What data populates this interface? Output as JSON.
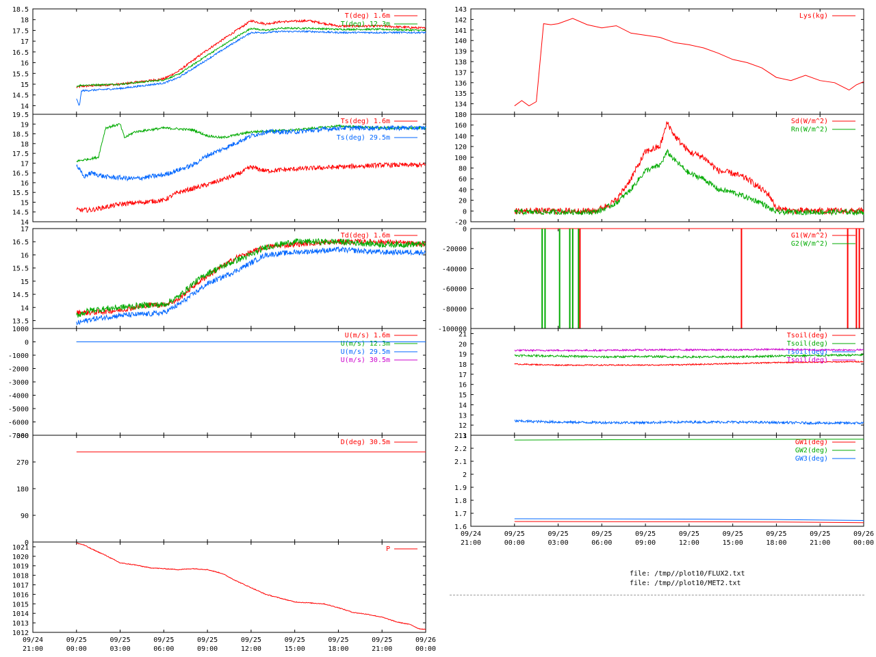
{
  "files": [
    "file: /tmp//plot10/FLUX2.txt",
    "file: /tmp//plot10/MET2.txt"
  ],
  "chart_data": [
    {
      "type": "line",
      "xlim": [
        -3,
        24
      ],
      "ylim": [
        13.6,
        18.5
      ],
      "yticks": [
        "14",
        "14.5",
        "15",
        "15.5",
        "16",
        "16.5",
        "17",
        "17.5",
        "18",
        "18.5"
      ],
      "series": [
        {
          "name": "T(deg)  1.6m",
          "color": "#ff0000",
          "noise": 0.05,
          "x": [
            0,
            0.3,
            3,
            6,
            7,
            9,
            11,
            12,
            13,
            14,
            16,
            18,
            21,
            24
          ],
          "y": [
            14.85,
            14.9,
            15.0,
            15.25,
            15.6,
            16.6,
            17.5,
            17.95,
            17.8,
            17.9,
            17.95,
            17.7,
            17.7,
            17.6
          ]
        },
        {
          "name": "T(deg) 12.3m",
          "color": "#00aa00",
          "noise": 0.04,
          "x": [
            0,
            0.3,
            3,
            6,
            7,
            9,
            11,
            12,
            13,
            14,
            16,
            18,
            21,
            24
          ],
          "y": [
            14.9,
            14.95,
            15.0,
            15.2,
            15.45,
            16.35,
            17.2,
            17.6,
            17.5,
            17.6,
            17.6,
            17.55,
            17.55,
            17.5
          ]
        },
        {
          "name": "",
          "color": "#0066ff",
          "noise": 0.04,
          "x": [
            0,
            0.2,
            0.35,
            0.6,
            3,
            6,
            7,
            9,
            11,
            12,
            13,
            14,
            16,
            18,
            21,
            24
          ],
          "y": [
            14.3,
            14.0,
            14.7,
            14.7,
            14.8,
            15.05,
            15.3,
            16.15,
            17.0,
            17.4,
            17.4,
            17.45,
            17.45,
            17.4,
            17.4,
            17.4
          ]
        }
      ]
    },
    {
      "type": "line",
      "xlim": [
        -3,
        24
      ],
      "ylim": [
        14,
        19.5
      ],
      "yticks": [
        "14",
        "14.5",
        "15",
        "15.5",
        "16",
        "16.5",
        "17",
        "17.5",
        "18",
        "18.5",
        "19",
        "19.5"
      ],
      "series": [
        {
          "name": "Ts(deg)  1.6m",
          "color": "#ff0000",
          "noise": 0.12,
          "x": [
            0,
            1,
            3,
            6,
            7,
            9,
            11,
            12,
            13,
            15,
            18,
            21,
            24
          ],
          "y": [
            14.6,
            14.6,
            14.9,
            15.1,
            15.5,
            15.9,
            16.4,
            16.8,
            16.6,
            16.7,
            16.8,
            16.9,
            16.9
          ]
        },
        {
          "name": "",
          "color": "#00aa00",
          "noise": 0.06,
          "x": [
            0,
            1.5,
            2,
            3,
            3.3,
            4,
            6,
            8,
            9,
            10,
            12,
            15,
            18,
            21,
            24
          ],
          "y": [
            17.1,
            17.3,
            18.8,
            19.0,
            18.3,
            18.6,
            18.8,
            18.7,
            18.4,
            18.3,
            18.6,
            18.7,
            18.9,
            18.8,
            18.8
          ]
        },
        {
          "name": "Ts(deg) 29.5m",
          "color": "#0066ff",
          "noise": 0.12,
          "x": [
            0,
            0.5,
            1,
            2,
            4,
            6,
            8,
            9,
            10,
            12,
            13,
            15,
            18,
            21,
            24
          ],
          "y": [
            16.9,
            16.3,
            16.5,
            16.3,
            16.2,
            16.4,
            16.9,
            17.4,
            17.7,
            18.4,
            18.6,
            18.6,
            18.8,
            18.8,
            18.8
          ]
        }
      ]
    },
    {
      "type": "line",
      "xlim": [
        -3,
        24
      ],
      "ylim": [
        13.2,
        17.0
      ],
      "yticks": [
        "13.5",
        "14",
        "14.5",
        "15",
        "15.5",
        "16",
        "16.5",
        "17"
      ],
      "series": [
        {
          "name": "Td(deg)  1.6m",
          "color": "#ff0000",
          "noise": 0.1,
          "x": [
            0,
            1,
            3,
            5,
            6,
            7,
            8,
            9,
            11,
            12,
            13,
            15,
            18,
            21,
            24
          ],
          "y": [
            13.8,
            13.8,
            13.9,
            14.1,
            14.1,
            14.3,
            14.8,
            15.2,
            15.9,
            16.1,
            16.3,
            16.4,
            16.5,
            16.5,
            16.4
          ]
        },
        {
          "name": "",
          "color": "#00aa00",
          "noise": 0.12,
          "x": [
            0,
            1,
            3,
            5,
            6,
            7,
            8,
            9,
            11,
            12,
            13,
            15,
            18,
            21,
            24
          ],
          "y": [
            13.7,
            13.9,
            14.0,
            14.1,
            14.1,
            14.4,
            14.9,
            15.3,
            15.8,
            16.0,
            16.3,
            16.5,
            16.5,
            16.4,
            16.4
          ]
        },
        {
          "name": "",
          "color": "#0066ff",
          "noise": 0.1,
          "x": [
            0,
            1,
            3,
            5,
            6,
            7,
            8,
            9,
            11,
            12,
            13,
            15,
            18,
            21,
            24
          ],
          "y": [
            13.4,
            13.55,
            13.7,
            13.75,
            13.8,
            14.1,
            14.5,
            14.9,
            15.4,
            15.7,
            16.0,
            16.1,
            16.2,
            16.1,
            16.1
          ]
        }
      ]
    },
    {
      "type": "line",
      "xlim": [
        -3,
        24
      ],
      "ylim": [
        -7000,
        1000
      ],
      "yticks": [
        "-7000",
        "-6000",
        "-5000",
        "-4000",
        "-3000",
        "-2000",
        "-1000",
        "0",
        "1000"
      ],
      "series": [
        {
          "name": "U(m/s)  1.6m",
          "color": "#ff0000",
          "x": [
            0,
            24
          ],
          "y": [
            0,
            0
          ]
        },
        {
          "name": "U(m/s) 12.3m",
          "color": "#00aa00",
          "x": [
            0,
            24
          ],
          "y": [
            0,
            0
          ]
        },
        {
          "name": "U(m/s) 29.5m",
          "color": "#0066ff",
          "x": [
            0,
            24
          ],
          "y": [
            0,
            0
          ]
        },
        {
          "name": "U(m/s) 30.5m",
          "color": "#cc00cc",
          "x": [],
          "y": []
        }
      ]
    },
    {
      "type": "line",
      "xlim": [
        -3,
        24
      ],
      "ylim": [
        0,
        360
      ],
      "yticks": [
        "0",
        "90",
        "180",
        "270",
        "360"
      ],
      "series": [
        {
          "name": "D(deg)  30.5m",
          "color": "#ff0000",
          "x": [
            0,
            24
          ],
          "y": [
            304,
            304
          ]
        }
      ]
    },
    {
      "type": "line",
      "xlim": [
        -3,
        24
      ],
      "ylim": [
        1012,
        1021.5
      ],
      "yticks": [
        "1012",
        "1013",
        "1014",
        "1015",
        "1016",
        "1017",
        "1018",
        "1019",
        "1020",
        "1021"
      ],
      "xticks": [
        {
          "l1": "09/24",
          "l2": "21:00"
        },
        {
          "l1": "09/25",
          "l2": "00:00"
        },
        {
          "l1": "09/25",
          "l2": "03:00"
        },
        {
          "l1": "09/25",
          "l2": "06:00"
        },
        {
          "l1": "09/25",
          "l2": "09:00"
        },
        {
          "l1": "09/25",
          "l2": "12:00"
        },
        {
          "l1": "09/25",
          "l2": "15:00"
        },
        {
          "l1": "09/25",
          "l2": "18:00"
        },
        {
          "l1": "09/25",
          "l2": "21:00"
        },
        {
          "l1": "09/26",
          "l2": "00:00"
        }
      ],
      "series": [
        {
          "name": "P",
          "color": "#ff0000",
          "noise": 0.04,
          "x": [
            0,
            0.5,
            1,
            2,
            3,
            4,
            5,
            6,
            7,
            8,
            9,
            10,
            11,
            12,
            13,
            14,
            15,
            16,
            17,
            18,
            19,
            20,
            21,
            22,
            23,
            23.5,
            24
          ],
          "y": [
            1021.4,
            1021.2,
            1020.8,
            1020.1,
            1019.3,
            1019.1,
            1018.8,
            1018.7,
            1018.6,
            1018.7,
            1018.6,
            1018.2,
            1017.4,
            1016.7,
            1016.0,
            1015.6,
            1015.2,
            1015.1,
            1015.0,
            1014.6,
            1014.1,
            1013.9,
            1013.6,
            1013.1,
            1012.8,
            1012.4,
            1012.3
          ]
        }
      ]
    },
    {
      "type": "line",
      "xlim": [
        -3,
        24
      ],
      "ylim": [
        133,
        143
      ],
      "yticks": [
        "134",
        "135",
        "136",
        "137",
        "138",
        "139",
        "140",
        "141",
        "142",
        "143"
      ],
      "series": [
        {
          "name": "Lys(kg)",
          "color": "#ff0000",
          "x": [
            0,
            0.5,
            1.0,
            1.5,
            2.0,
            2.5,
            3,
            4,
            5,
            6,
            7,
            8,
            9,
            10,
            11,
            12,
            13,
            14,
            15,
            16,
            17,
            18,
            19,
            20,
            21,
            22,
            23,
            23.5,
            24
          ],
          "y": [
            133.8,
            134.3,
            133.8,
            134.2,
            141.6,
            141.5,
            141.6,
            142.1,
            141.5,
            141.2,
            141.4,
            140.7,
            140.5,
            140.3,
            139.8,
            139.6,
            139.3,
            138.8,
            138.2,
            137.9,
            137.4,
            136.5,
            136.2,
            136.7,
            136.2,
            136.0,
            135.3,
            135.8,
            136.1
          ]
        }
      ]
    },
    {
      "type": "line",
      "xlim": [
        -3,
        24
      ],
      "ylim": [
        -20,
        180
      ],
      "yticks": [
        "-20",
        "0",
        "20",
        "40",
        "60",
        "80",
        "100",
        "120",
        "140",
        "160",
        "180"
      ],
      "series": [
        {
          "name": "Sd(W/m^2)",
          "color": "#ff0000",
          "noise": 6,
          "x": [
            0,
            5.5,
            6,
            7,
            8,
            9,
            10,
            10.5,
            11,
            12,
            13,
            14,
            15,
            16,
            17,
            17.5,
            18,
            19,
            20,
            21,
            24
          ],
          "y": [
            0,
            0,
            5,
            20,
            60,
            110,
            120,
            165,
            140,
            110,
            100,
            75,
            70,
            60,
            40,
            30,
            5,
            0,
            0,
            0,
            0
          ]
        },
        {
          "name": "Rn(W/m^2)",
          "color": "#00aa00",
          "noise": 5,
          "x": [
            0,
            5.5,
            6,
            7,
            8,
            9,
            10,
            10.5,
            11,
            12,
            13,
            14,
            15,
            16,
            17,
            17.5,
            18,
            19,
            20,
            21,
            24
          ],
          "y": [
            -2,
            -2,
            2,
            15,
            40,
            75,
            85,
            110,
            95,
            70,
            60,
            40,
            35,
            25,
            15,
            5,
            -2,
            -2,
            -2,
            -2,
            -2
          ]
        }
      ]
    },
    {
      "type": "line",
      "xlim": [
        -3,
        24
      ],
      "ylim": [
        -100000,
        0
      ],
      "yticks": [
        "-100000",
        "-80000",
        "-60000",
        "-40000",
        "-20000",
        "0"
      ],
      "series": [
        {
          "name": "G1(W/m^2)",
          "color": "#ff0000",
          "x": [
            0,
            24
          ],
          "y": [
            0,
            0
          ],
          "spikes": [
            4.5,
            15.6,
            22.9,
            23.5,
            23.7
          ]
        },
        {
          "name": "G2(W/m^2)",
          "color": "#00aa00",
          "x": [],
          "y": [],
          "spikes": [
            1.9,
            2.1,
            3.1,
            3.8,
            4.0,
            4.4
          ]
        }
      ]
    },
    {
      "type": "line",
      "xlim": [
        -3,
        24
      ],
      "ylim": [
        11,
        21.5
      ],
      "yticks": [
        "11",
        "12",
        "13",
        "14",
        "15",
        "16",
        "17",
        "18",
        "19",
        "20",
        "21"
      ],
      "series": [
        {
          "name": "Tsoil(deg)",
          "color": "#ff0000",
          "noise": 0.06,
          "x": [
            0,
            3,
            6,
            9,
            12,
            15,
            18,
            21,
            24
          ],
          "y": [
            18.0,
            17.9,
            17.9,
            17.9,
            17.95,
            18.05,
            18.15,
            18.2,
            18.25
          ]
        },
        {
          "name": "Tsoil(deg)",
          "color": "#00aa00",
          "noise": 0.1,
          "x": [
            0,
            3,
            6,
            9,
            12,
            15,
            18,
            21,
            24
          ],
          "y": [
            18.85,
            18.8,
            18.7,
            18.75,
            18.7,
            18.7,
            18.8,
            18.85,
            18.9
          ]
        },
        {
          "name": "Tsoil(deg)",
          "color": "#0066ff",
          "noise": 0.12,
          "x": [
            0,
            3,
            6,
            9,
            12,
            15,
            18,
            21,
            24
          ],
          "y": [
            12.4,
            12.3,
            12.25,
            12.25,
            12.3,
            12.3,
            12.25,
            12.2,
            12.2
          ]
        },
        {
          "name": "Tsoil(deg)",
          "color": "#cc00cc",
          "noise": 0.08,
          "x": [
            0,
            3,
            6,
            9,
            12,
            15,
            18,
            21,
            24
          ],
          "y": [
            19.35,
            19.35,
            19.35,
            19.4,
            19.4,
            19.4,
            19.45,
            19.4,
            19.4
          ]
        }
      ]
    },
    {
      "type": "line",
      "xlim": [
        -3,
        24
      ],
      "ylim": [
        1.6,
        2.3
      ],
      "yticks": [
        "1.6",
        "1.7",
        "1.8",
        "1.9",
        "2",
        "2.1",
        "2.2",
        "2.3"
      ],
      "xticks": [
        {
          "l1": "09/24",
          "l2": "21:00"
        },
        {
          "l1": "09/25",
          "l2": "00:00"
        },
        {
          "l1": "09/25",
          "l2": "03:00"
        },
        {
          "l1": "09/25",
          "l2": "06:00"
        },
        {
          "l1": "09/25",
          "l2": "09:00"
        },
        {
          "l1": "09/25",
          "l2": "12:00"
        },
        {
          "l1": "09/25",
          "l2": "15:00"
        },
        {
          "l1": "09/25",
          "l2": "18:00"
        },
        {
          "l1": "09/25",
          "l2": "21:00"
        },
        {
          "l1": "09/26",
          "l2": "00:00"
        }
      ],
      "series": [
        {
          "name": "GW1(deg)",
          "color": "#ff0000",
          "x": [
            0,
            12,
            18,
            24
          ],
          "y": [
            1.637,
            1.635,
            1.633,
            1.628
          ]
        },
        {
          "name": "GW2(deg)",
          "color": "#00aa00",
          "x": [
            0,
            12,
            24
          ],
          "y": [
            2.263,
            2.268,
            2.27
          ]
        },
        {
          "name": "GW3(deg)",
          "color": "#0066ff",
          "x": [
            0,
            12,
            18,
            24
          ],
          "y": [
            1.658,
            1.655,
            1.652,
            1.645
          ]
        }
      ]
    }
  ]
}
